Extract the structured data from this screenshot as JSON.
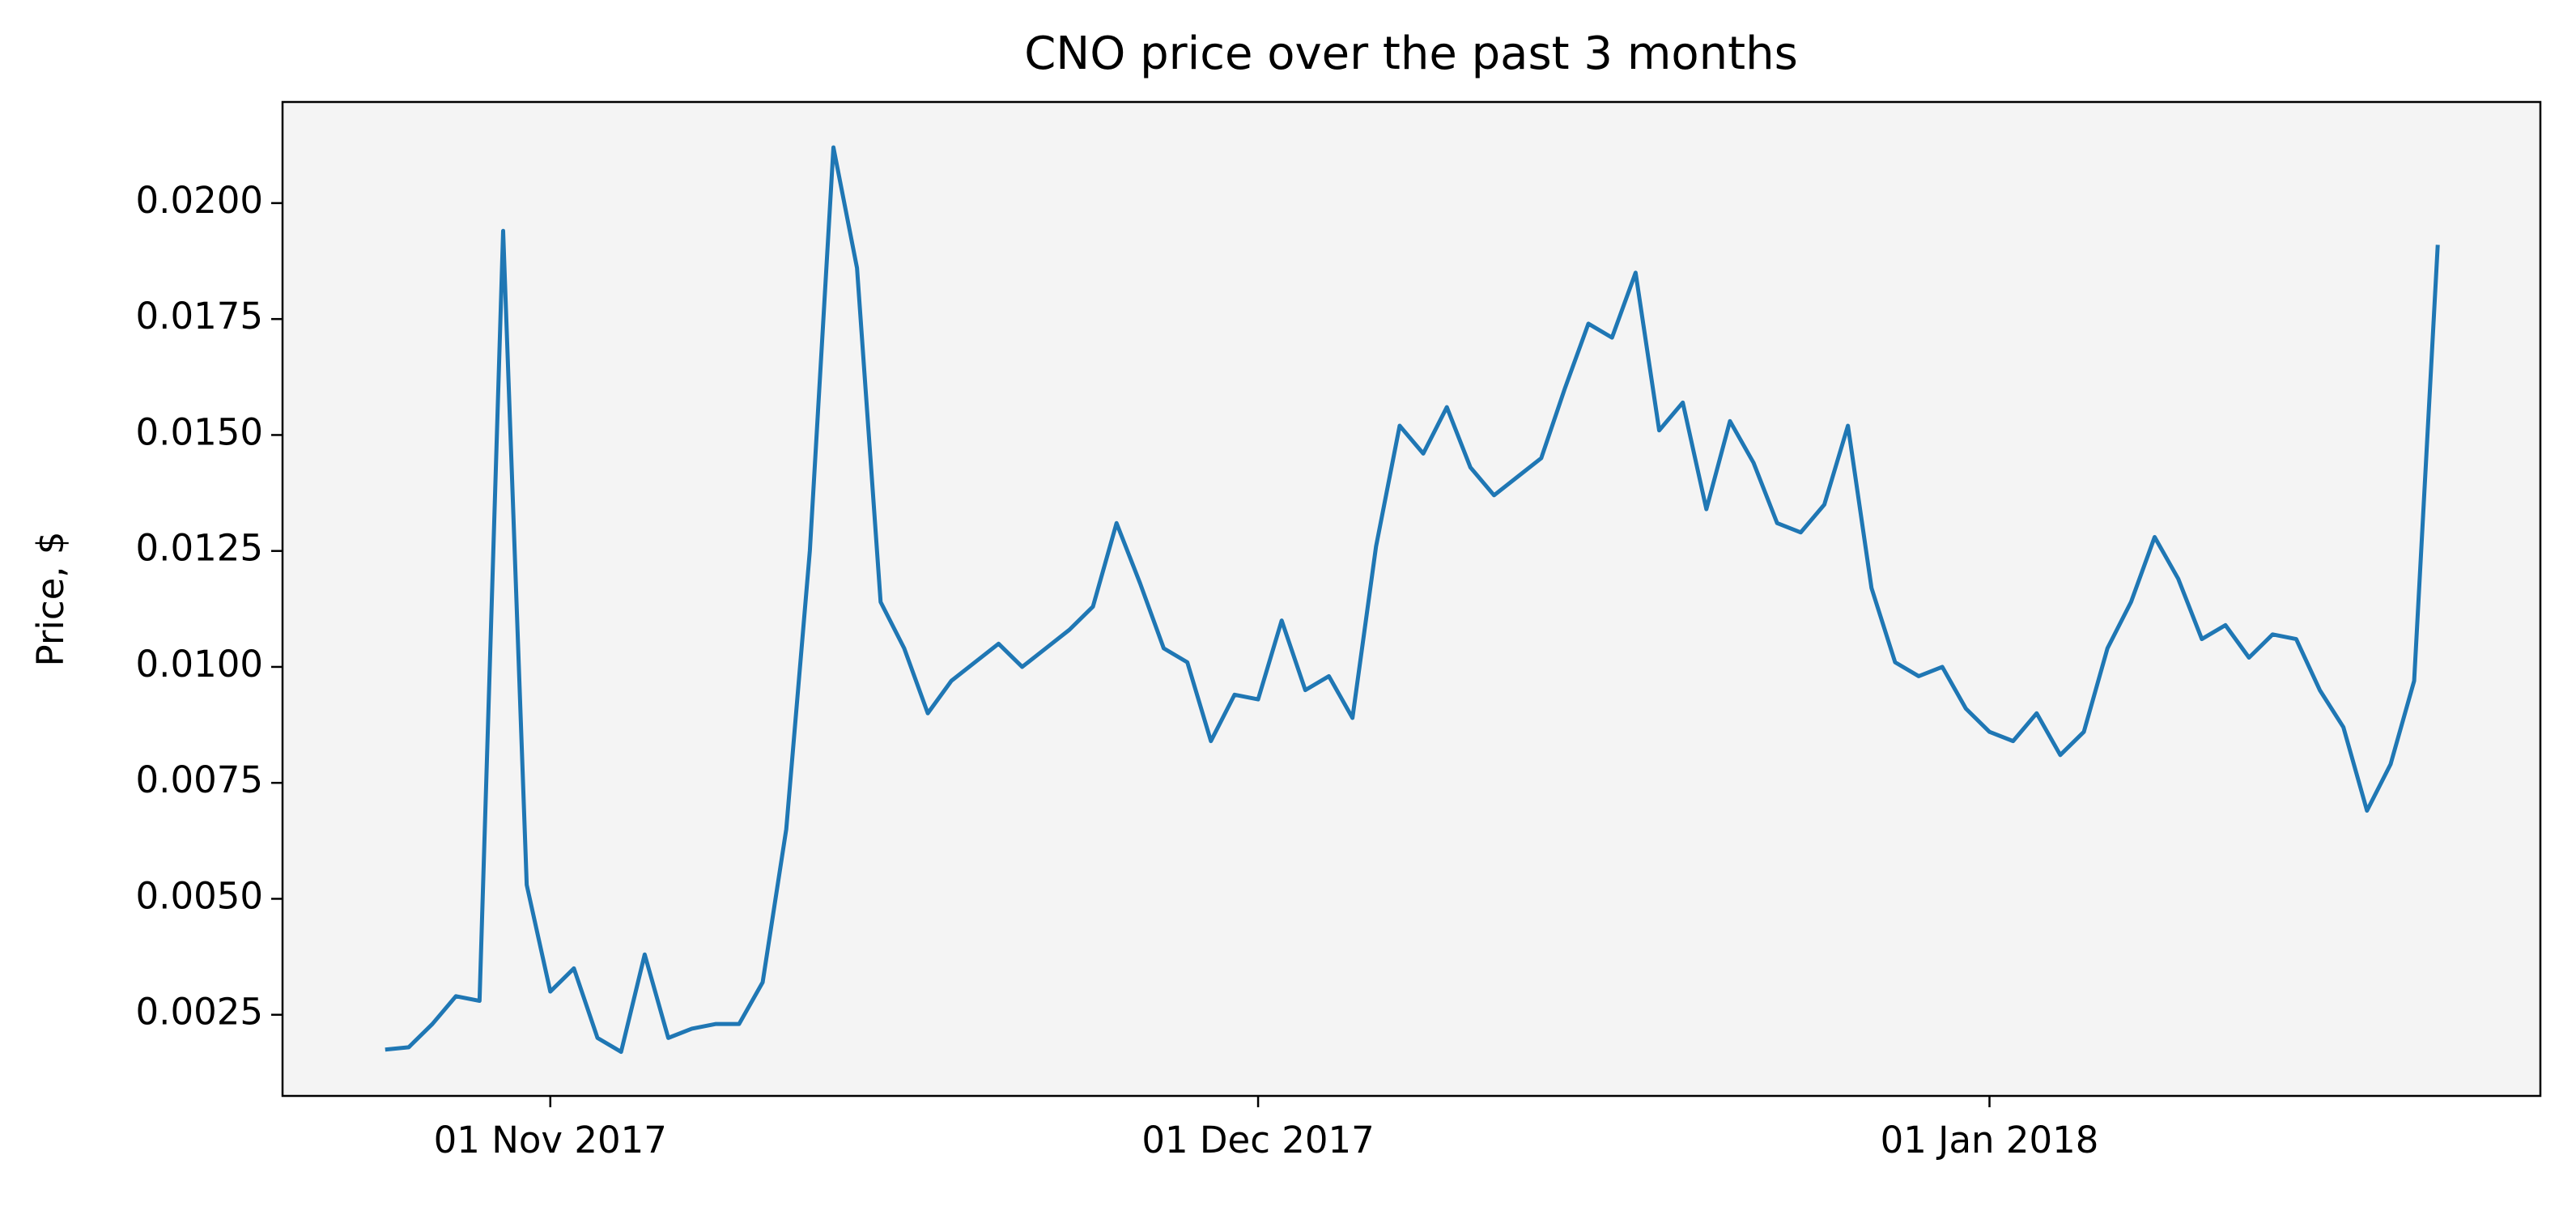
{
  "chart_data": {
    "type": "line",
    "title": "CNO price over the past 3 months",
    "ylabel": "Price, $",
    "color": "#1f77b4",
    "background": "#f4f4f4",
    "x": [
      "2017-10-25",
      "2017-10-26",
      "2017-10-27",
      "2017-10-28",
      "2017-10-29",
      "2017-10-30",
      "2017-10-31",
      "2017-11-01",
      "2017-11-02",
      "2017-11-03",
      "2017-11-04",
      "2017-11-05",
      "2017-11-06",
      "2017-11-07",
      "2017-11-08",
      "2017-11-09",
      "2017-11-10",
      "2017-11-11",
      "2017-11-12",
      "2017-11-13",
      "2017-11-14",
      "2017-11-15",
      "2017-11-16",
      "2017-11-17",
      "2017-11-18",
      "2017-11-19",
      "2017-11-20",
      "2017-11-21",
      "2017-11-22",
      "2017-11-23",
      "2017-11-24",
      "2017-11-25",
      "2017-11-26",
      "2017-11-27",
      "2017-11-28",
      "2017-11-29",
      "2017-11-30",
      "2017-12-01",
      "2017-12-02",
      "2017-12-03",
      "2017-12-04",
      "2017-12-05",
      "2017-12-06",
      "2017-12-07",
      "2017-12-08",
      "2017-12-09",
      "2017-12-10",
      "2017-12-11",
      "2017-12-12",
      "2017-12-13",
      "2017-12-14",
      "2017-12-15",
      "2017-12-16",
      "2017-12-17",
      "2017-12-18",
      "2017-12-19",
      "2017-12-20",
      "2017-12-21",
      "2017-12-22",
      "2017-12-23",
      "2017-12-24",
      "2017-12-25",
      "2017-12-26",
      "2017-12-27",
      "2017-12-28",
      "2017-12-29",
      "2017-12-30",
      "2017-12-31",
      "2018-01-01",
      "2018-01-02",
      "2018-01-03",
      "2018-01-04",
      "2018-01-05",
      "2018-01-06",
      "2018-01-07",
      "2018-01-08",
      "2018-01-09",
      "2018-01-10",
      "2018-01-11",
      "2018-01-12",
      "2018-01-13",
      "2018-01-14",
      "2018-01-15",
      "2018-01-16",
      "2018-01-17",
      "2018-01-18",
      "2018-01-19",
      "2018-01-20"
    ],
    "values": [
      0.00175,
      0.0018,
      0.0023,
      0.0029,
      0.0028,
      0.0194,
      0.0053,
      0.003,
      0.0035,
      0.002,
      0.0017,
      0.0038,
      0.002,
      0.0022,
      0.0023,
      0.0023,
      0.0032,
      0.0065,
      0.0125,
      0.0212,
      0.0186,
      0.0114,
      0.0104,
      0.009,
      0.0097,
      0.0101,
      0.0105,
      0.01,
      0.0104,
      0.0108,
      0.0113,
      0.0131,
      0.0118,
      0.0104,
      0.0101,
      0.0084,
      0.0094,
      0.0093,
      0.011,
      0.0095,
      0.0098,
      0.0089,
      0.0126,
      0.0152,
      0.0146,
      0.0156,
      0.0143,
      0.0137,
      0.0141,
      0.0145,
      0.016,
      0.0174,
      0.0171,
      0.0185,
      0.0151,
      0.0157,
      0.0134,
      0.0153,
      0.0144,
      0.0131,
      0.0129,
      0.0135,
      0.0152,
      0.0117,
      0.0101,
      0.0098,
      0.01,
      0.0091,
      0.0086,
      0.0084,
      0.009,
      0.0081,
      0.0086,
      0.0104,
      0.0114,
      0.0128,
      0.0119,
      0.0106,
      0.0109,
      0.0102,
      0.0107,
      0.0106,
      0.0095,
      0.0087,
      0.0069,
      0.0079,
      0.0097,
      0.0191
    ],
    "xlim": [
      "2017-10-20T15:36:00Z",
      "2018-01-24T08:24:00Z"
    ],
    "xticks": [
      {
        "value": "2017-11-01",
        "label": "01 Nov 2017"
      },
      {
        "value": "2017-12-01",
        "label": "01 Dec 2017"
      },
      {
        "value": "2018-01-01",
        "label": "01 Jan 2018"
      }
    ],
    "ylim": [
      0.00075,
      0.02218
    ],
    "yticks": [
      0.0025,
      {
        "value": 0.005,
        "label": "0.0050"
      },
      0.0075,
      {
        "value": 0.01,
        "label": "0.0100"
      },
      0.0125,
      {
        "value": 0.015,
        "label": "0.0150"
      },
      0.0175,
      {
        "value": 0.02,
        "label": "0.0200"
      }
    ]
  }
}
